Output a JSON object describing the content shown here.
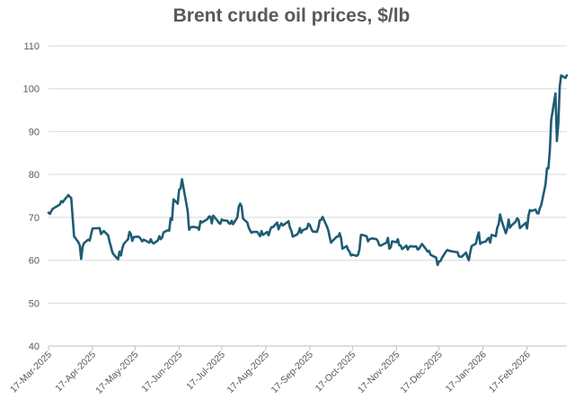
{
  "chart_data": {
    "type": "line",
    "title": "Brent crude oil prices, $/lb",
    "xlabel": "",
    "ylabel": "",
    "ylim": [
      40,
      110
    ],
    "yticks": [
      40,
      50,
      60,
      70,
      80,
      90,
      100,
      110
    ],
    "grid": "horizontal",
    "legend": "none",
    "line_color": "#1F5C74",
    "grid_color": "#D9D9D9",
    "xticks": [
      "17-Mar-2025",
      "17-Apr-2025",
      "17-May-2025",
      "17-Jun-2025",
      "17-Jul-2025",
      "17-Aug-2025",
      "17-Sep-2025",
      "17-Oct-2025",
      "17-Nov-2025",
      "17-Dec-2025",
      "17-Jan-2026",
      "17-Feb-2026"
    ],
    "series": [
      {
        "values": [
          [
            "2025-03-17",
            71.1
          ],
          [
            "2025-03-18",
            70.8
          ],
          [
            "2025-03-19",
            71.5
          ],
          [
            "2025-03-20",
            72.0
          ],
          [
            "2025-03-21",
            72.2
          ],
          [
            "2025-03-24",
            72.8
          ],
          [
            "2025-03-25",
            73.0
          ],
          [
            "2025-03-26",
            73.8
          ],
          [
            "2025-03-27",
            73.5
          ],
          [
            "2025-03-28",
            74.0
          ],
          [
            "2025-03-31",
            75.2
          ],
          [
            "2025-04-01",
            74.8
          ],
          [
            "2025-04-02",
            74.5
          ],
          [
            "2025-04-03",
            70.0
          ],
          [
            "2025-04-04",
            65.6
          ],
          [
            "2025-04-07",
            64.2
          ],
          [
            "2025-04-08",
            63.5
          ],
          [
            "2025-04-09",
            60.3
          ],
          [
            "2025-04-10",
            63.1
          ],
          [
            "2025-04-11",
            64.0
          ],
          [
            "2025-04-14",
            64.8
          ],
          [
            "2025-04-15",
            64.6
          ],
          [
            "2025-04-16",
            66.0
          ],
          [
            "2025-04-17",
            67.4
          ],
          [
            "2025-04-22",
            67.5
          ],
          [
            "2025-04-23",
            66.1
          ],
          [
            "2025-04-24",
            66.5
          ],
          [
            "2025-04-25",
            66.8
          ],
          [
            "2025-04-28",
            65.8
          ],
          [
            "2025-04-29",
            64.3
          ],
          [
            "2025-04-30",
            63.1
          ],
          [
            "2025-05-01",
            61.8
          ],
          [
            "2025-05-02",
            61.3
          ],
          [
            "2025-05-05",
            60.2
          ],
          [
            "2025-05-06",
            62.0
          ],
          [
            "2025-05-07",
            61.1
          ],
          [
            "2025-05-08",
            62.8
          ],
          [
            "2025-05-09",
            63.8
          ],
          [
            "2025-05-12",
            64.9
          ],
          [
            "2025-05-13",
            66.6
          ],
          [
            "2025-05-14",
            66.1
          ],
          [
            "2025-05-15",
            64.5
          ],
          [
            "2025-05-16",
            65.4
          ],
          [
            "2025-05-19",
            65.5
          ],
          [
            "2025-05-20",
            65.4
          ],
          [
            "2025-05-21",
            64.9
          ],
          [
            "2025-05-22",
            64.4
          ],
          [
            "2025-05-23",
            64.8
          ],
          [
            "2025-05-27",
            64.1
          ],
          [
            "2025-05-28",
            64.9
          ],
          [
            "2025-05-29",
            64.2
          ],
          [
            "2025-05-30",
            63.9
          ],
          [
            "2025-06-02",
            64.6
          ],
          [
            "2025-06-03",
            65.6
          ],
          [
            "2025-06-04",
            64.9
          ],
          [
            "2025-06-05",
            65.3
          ],
          [
            "2025-06-06",
            66.5
          ],
          [
            "2025-06-09",
            67.0
          ],
          [
            "2025-06-10",
            66.9
          ],
          [
            "2025-06-11",
            69.8
          ],
          [
            "2025-06-12",
            69.4
          ],
          [
            "2025-06-13",
            74.2
          ],
          [
            "2025-06-16",
            73.2
          ],
          [
            "2025-06-17",
            76.5
          ],
          [
            "2025-06-18",
            76.7
          ],
          [
            "2025-06-19",
            78.9
          ],
          [
            "2025-06-20",
            77.0
          ],
          [
            "2025-06-23",
            71.5
          ],
          [
            "2025-06-24",
            67.1
          ],
          [
            "2025-06-25",
            67.7
          ],
          [
            "2025-06-26",
            67.7
          ],
          [
            "2025-06-27",
            67.8
          ],
          [
            "2025-06-30",
            67.6
          ],
          [
            "2025-07-01",
            67.1
          ],
          [
            "2025-07-02",
            69.1
          ],
          [
            "2025-07-03",
            68.8
          ],
          [
            "2025-07-07",
            69.6
          ],
          [
            "2025-07-08",
            70.2
          ],
          [
            "2025-07-09",
            70.2
          ],
          [
            "2025-07-10",
            68.6
          ],
          [
            "2025-07-11",
            70.4
          ],
          [
            "2025-07-14",
            69.2
          ],
          [
            "2025-07-15",
            68.7
          ],
          [
            "2025-07-16",
            68.5
          ],
          [
            "2025-07-17",
            69.5
          ],
          [
            "2025-07-18",
            69.3
          ],
          [
            "2025-07-21",
            69.2
          ],
          [
            "2025-07-22",
            68.6
          ],
          [
            "2025-07-23",
            68.5
          ],
          [
            "2025-07-24",
            69.2
          ],
          [
            "2025-07-25",
            68.4
          ],
          [
            "2025-07-28",
            70.0
          ],
          [
            "2025-07-29",
            72.5
          ],
          [
            "2025-07-30",
            73.2
          ],
          [
            "2025-07-31",
            72.5
          ],
          [
            "2025-08-01",
            69.7
          ],
          [
            "2025-08-04",
            68.8
          ],
          [
            "2025-08-05",
            67.6
          ],
          [
            "2025-08-06",
            66.9
          ],
          [
            "2025-08-07",
            66.4
          ],
          [
            "2025-08-08",
            66.6
          ],
          [
            "2025-08-11",
            66.6
          ],
          [
            "2025-08-12",
            66.1
          ],
          [
            "2025-08-13",
            65.6
          ],
          [
            "2025-08-14",
            66.8
          ],
          [
            "2025-08-15",
            65.9
          ],
          [
            "2025-08-18",
            66.6
          ],
          [
            "2025-08-19",
            65.8
          ],
          [
            "2025-08-20",
            67.0
          ],
          [
            "2025-08-21",
            67.7
          ],
          [
            "2025-08-22",
            67.7
          ],
          [
            "2025-08-25",
            68.8
          ],
          [
            "2025-08-26",
            67.2
          ],
          [
            "2025-08-27",
            68.1
          ],
          [
            "2025-08-28",
            68.6
          ],
          [
            "2025-08-29",
            68.1
          ],
          [
            "2025-09-02",
            69.1
          ],
          [
            "2025-09-03",
            67.6
          ],
          [
            "2025-09-04",
            66.9
          ],
          [
            "2025-09-05",
            65.5
          ],
          [
            "2025-09-08",
            66.0
          ],
          [
            "2025-09-09",
            66.4
          ],
          [
            "2025-09-10",
            67.5
          ],
          [
            "2025-09-11",
            66.4
          ],
          [
            "2025-09-12",
            67.0
          ],
          [
            "2025-09-15",
            67.4
          ],
          [
            "2025-09-16",
            68.5
          ],
          [
            "2025-09-17",
            68.2
          ],
          [
            "2025-09-18",
            67.4
          ],
          [
            "2025-09-19",
            66.7
          ],
          [
            "2025-09-22",
            66.6
          ],
          [
            "2025-09-23",
            67.6
          ],
          [
            "2025-09-24",
            69.3
          ],
          [
            "2025-09-25",
            69.4
          ],
          [
            "2025-09-26",
            70.1
          ],
          [
            "2025-09-29",
            67.9
          ],
          [
            "2025-09-30",
            67.0
          ],
          [
            "2025-10-01",
            65.4
          ],
          [
            "2025-10-02",
            64.1
          ],
          [
            "2025-10-03",
            64.5
          ],
          [
            "2025-10-06",
            65.5
          ],
          [
            "2025-10-07",
            65.5
          ],
          [
            "2025-10-08",
            66.3
          ],
          [
            "2025-10-09",
            65.2
          ],
          [
            "2025-10-10",
            62.7
          ],
          [
            "2025-10-13",
            63.3
          ],
          [
            "2025-10-14",
            62.4
          ],
          [
            "2025-10-15",
            62.0
          ],
          [
            "2025-10-16",
            61.1
          ],
          [
            "2025-10-17",
            61.3
          ],
          [
            "2025-10-20",
            61.0
          ],
          [
            "2025-10-21",
            61.3
          ],
          [
            "2025-10-22",
            62.6
          ],
          [
            "2025-10-23",
            65.9
          ],
          [
            "2025-10-24",
            65.9
          ],
          [
            "2025-10-27",
            65.6
          ],
          [
            "2025-10-28",
            64.4
          ],
          [
            "2025-10-29",
            64.9
          ],
          [
            "2025-10-30",
            65.0
          ],
          [
            "2025-10-31",
            65.1
          ],
          [
            "2025-11-03",
            64.9
          ],
          [
            "2025-11-04",
            64.4
          ],
          [
            "2025-11-05",
            63.5
          ],
          [
            "2025-11-06",
            63.4
          ],
          [
            "2025-11-07",
            63.6
          ],
          [
            "2025-11-10",
            64.1
          ],
          [
            "2025-11-11",
            65.2
          ],
          [
            "2025-11-12",
            62.7
          ],
          [
            "2025-11-13",
            63.0
          ],
          [
            "2025-11-14",
            64.4
          ],
          [
            "2025-11-17",
            64.2
          ],
          [
            "2025-11-18",
            64.9
          ],
          [
            "2025-11-19",
            63.5
          ],
          [
            "2025-11-20",
            63.4
          ],
          [
            "2025-11-21",
            62.6
          ],
          [
            "2025-11-24",
            63.4
          ],
          [
            "2025-11-25",
            62.5
          ],
          [
            "2025-11-26",
            63.1
          ],
          [
            "2025-11-27",
            63.3
          ],
          [
            "2025-11-28",
            63.2
          ],
          [
            "2025-12-01",
            63.2
          ],
          [
            "2025-12-02",
            62.5
          ],
          [
            "2025-12-03",
            62.7
          ],
          [
            "2025-12-04",
            63.3
          ],
          [
            "2025-12-05",
            63.8
          ],
          [
            "2025-12-08",
            62.5
          ],
          [
            "2025-12-09",
            62.0
          ],
          [
            "2025-12-10",
            62.2
          ],
          [
            "2025-12-11",
            61.3
          ],
          [
            "2025-12-12",
            61.1
          ],
          [
            "2025-12-15",
            60.6
          ],
          [
            "2025-12-16",
            58.9
          ],
          [
            "2025-12-17",
            59.7
          ],
          [
            "2025-12-18",
            59.8
          ],
          [
            "2025-12-19",
            60.5
          ],
          [
            "2025-12-22",
            62.1
          ],
          [
            "2025-12-23",
            62.4
          ],
          [
            "2025-12-24",
            62.2
          ],
          [
            "2025-12-29",
            61.9
          ],
          [
            "2025-12-30",
            61.9
          ],
          [
            "2025-12-31",
            60.9
          ],
          [
            "2026-01-02",
            60.8
          ],
          [
            "2026-01-05",
            61.8
          ],
          [
            "2026-01-06",
            60.7
          ],
          [
            "2026-01-07",
            60.0
          ],
          [
            "2026-01-08",
            61.9
          ],
          [
            "2026-01-09",
            63.3
          ],
          [
            "2026-01-12",
            63.9
          ],
          [
            "2026-01-13",
            65.5
          ],
          [
            "2026-01-14",
            66.5
          ],
          [
            "2026-01-15",
            63.8
          ],
          [
            "2026-01-16",
            64.1
          ],
          [
            "2026-01-19",
            64.4
          ],
          [
            "2026-01-20",
            64.9
          ],
          [
            "2026-01-21",
            65.2
          ],
          [
            "2026-01-22",
            64.1
          ],
          [
            "2026-01-23",
            65.9
          ],
          [
            "2026-01-26",
            65.6
          ],
          [
            "2026-01-27",
            67.6
          ],
          [
            "2026-01-28",
            68.4
          ],
          [
            "2026-01-29",
            70.7
          ],
          [
            "2026-01-30",
            69.3
          ],
          [
            "2026-02-02",
            66.3
          ],
          [
            "2026-02-03",
            67.3
          ],
          [
            "2026-02-04",
            69.5
          ],
          [
            "2026-02-05",
            67.6
          ],
          [
            "2026-02-06",
            68.1
          ],
          [
            "2026-02-09",
            69.0
          ],
          [
            "2026-02-10",
            69.8
          ],
          [
            "2026-02-11",
            69.4
          ],
          [
            "2026-02-12",
            67.5
          ],
          [
            "2026-02-13",
            67.8
          ],
          [
            "2026-02-16",
            68.7
          ],
          [
            "2026-02-17",
            67.4
          ],
          [
            "2026-02-18",
            70.4
          ],
          [
            "2026-02-19",
            71.7
          ],
          [
            "2026-02-20",
            71.5
          ],
          [
            "2026-02-23",
            71.8
          ],
          [
            "2026-02-24",
            71.0
          ],
          [
            "2026-02-25",
            70.9
          ],
          [
            "2026-02-26",
            72.1
          ],
          [
            "2026-02-27",
            72.9
          ],
          [
            "2026-03-02",
            77.7
          ],
          [
            "2026-03-03",
            81.4
          ],
          [
            "2026-03-04",
            81.4
          ],
          [
            "2026-03-05",
            85.4
          ],
          [
            "2026-03-06",
            92.7
          ],
          [
            "2026-03-09",
            98.9
          ],
          [
            "2026-03-10",
            87.8
          ],
          [
            "2026-03-11",
            91.9
          ],
          [
            "2026-03-12",
            100.5
          ],
          [
            "2026-03-13",
            103.1
          ],
          [
            "2026-03-16",
            102.5
          ],
          [
            "2026-03-17",
            103.1
          ]
        ]
      }
    ]
  }
}
